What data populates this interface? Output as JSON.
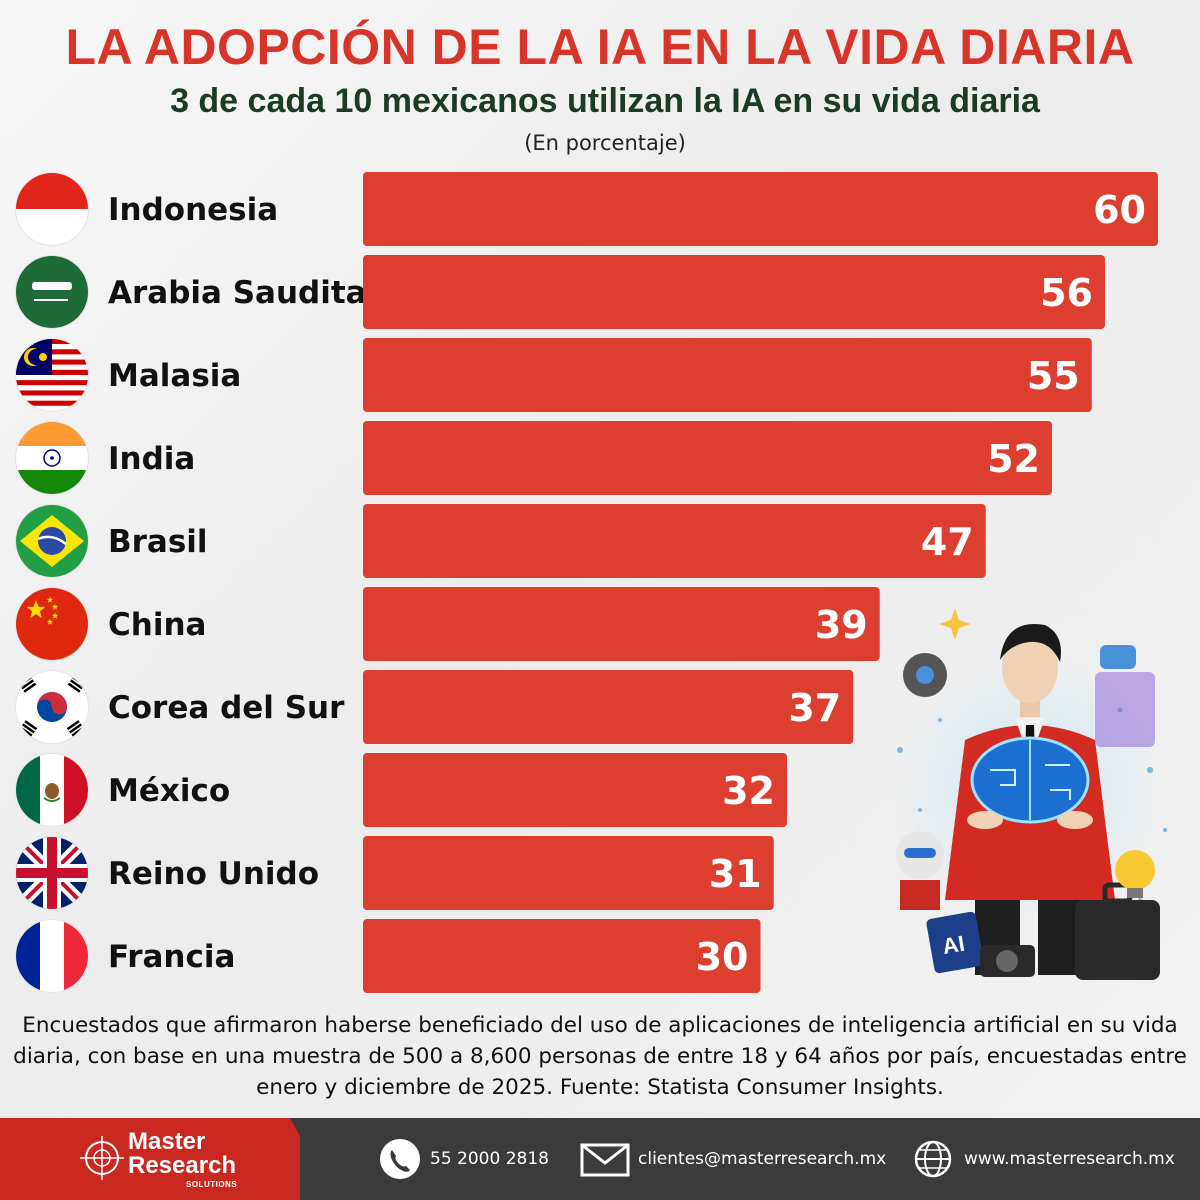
{
  "header": {
    "title": "LA ADOPCIÓN DE LA IA EN LA VIDA DIARIA",
    "subtitle": "3 de cada 10 mexicanos utilizan la IA en su vida diaria",
    "unit": "(En porcentaje)"
  },
  "chart_data": {
    "type": "bar",
    "orientation": "horizontal",
    "categories": [
      "Indonesia",
      "Arabia Saudita",
      "Malasia",
      "India",
      "Brasil",
      "China",
      "Corea del Sur",
      "México",
      "Reino Unido",
      "Francia"
    ],
    "values": [
      60,
      56,
      55,
      52,
      47,
      39,
      37,
      32,
      31,
      30
    ],
    "flags": [
      "indonesia-flag-icon",
      "saudi-arabia-flag-icon",
      "malaysia-flag-icon",
      "india-flag-icon",
      "brazil-flag-icon",
      "china-flag-icon",
      "south-korea-flag-icon",
      "mexico-flag-icon",
      "united-kingdom-flag-icon",
      "france-flag-icon"
    ],
    "bar_color": "#dc3f2f",
    "title": "LA ADOPCIÓN DE LA IA EN LA VIDA DIARIA",
    "ylabel": "(En porcentaje)",
    "grid": false,
    "legend": "none"
  },
  "illustration": "ai-businessman-illustration",
  "note": "Encuestados que afirmaron haberse beneficiado del uso de aplicaciones de inteligencia artificial en su vida diaria, con base en una muestra de 500 a 8,600 personas de entre 18 y 64 años por país, encuestadas entre enero y diciembre de 2025. Fuente: Statista Consumer Insights.",
  "footer": {
    "brand_line1": "Master",
    "brand_line2": "Research",
    "brand_line3": "SOLUTIONS",
    "phone": "55 2000 2818",
    "email": "clientes@masterresearch.mx",
    "website": "www.masterresearch.mx"
  },
  "colors": {
    "title": "#d8352a",
    "subtitle": "#1c3b25",
    "bar": "#dc3f2f",
    "footer_bg": "#3b3b3b",
    "brand_red": "#c8281f"
  }
}
